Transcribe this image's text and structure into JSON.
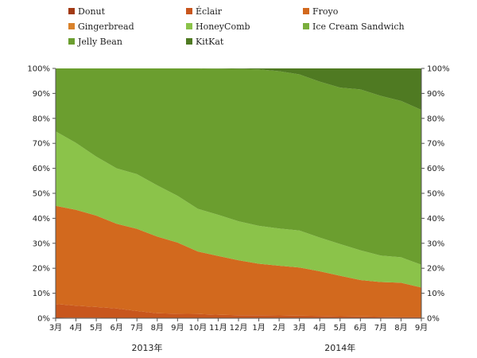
{
  "chart_data": {
    "type": "area",
    "stacked": true,
    "x": [
      "3月",
      "4月",
      "5月",
      "6月",
      "7月",
      "8月",
      "9月",
      "10月",
      "11月",
      "12月",
      "1月",
      "2月",
      "3月",
      "4月",
      "5月",
      "6月",
      "7月",
      "8月",
      "9月"
    ],
    "year_labels": [
      {
        "label": "2013年",
        "start_index": 0,
        "end_index": 9
      },
      {
        "label": "2014年",
        "start_index": 10,
        "end_index": 18
      }
    ],
    "ylim": [
      0,
      100
    ],
    "y_ticks": [
      "0%",
      "10%",
      "20%",
      "30%",
      "40%",
      "50%",
      "60%",
      "70%",
      "80%",
      "90%",
      "100%"
    ],
    "series": [
      {
        "name": "Donut",
        "color": "#a23a14",
        "values": [
          0.3,
          0.2,
          0.2,
          0.1,
          0.1,
          0.1,
          0.1,
          0.1,
          0.0,
          0.0,
          0.0,
          0.0,
          0.0,
          0.0,
          0.0,
          0.0,
          0.0,
          0.0,
          0.0
        ]
      },
      {
        "name": "Éclair",
        "color": "#c8561d",
        "values": [
          5.4,
          4.8,
          4.3,
          3.8,
          2.8,
          1.9,
          1.7,
          1.6,
          1.4,
          1.2,
          1.2,
          1.1,
          1.0,
          0.9,
          0.8,
          0.7,
          0.6,
          0.5,
          0.5
        ]
      },
      {
        "name": "Froyo",
        "color": "#d2691e",
        "values": [
          39.3,
          38.4,
          36.6,
          33.9,
          32.9,
          30.7,
          28.5,
          25.0,
          23.5,
          22.0,
          20.6,
          19.9,
          19.3,
          17.9,
          16.2,
          14.6,
          13.9,
          13.7,
          11.8
        ]
      },
      {
        "name": "Gingerbread",
        "color": "#d9822b",
        "values": [
          0.0,
          0.0,
          0.0,
          0.0,
          0.0,
          0.0,
          0.0,
          0.0,
          0.0,
          0.0,
          0.0,
          0.0,
          0.0,
          0.0,
          0.0,
          0.0,
          0.0,
          0.0,
          0.0
        ]
      },
      {
        "name": "HoneyComb",
        "color": "#8bc34a",
        "values": [
          29.8,
          26.8,
          23.6,
          22.2,
          21.9,
          20.5,
          18.7,
          17.1,
          16.5,
          15.6,
          15.2,
          14.9,
          14.8,
          13.5,
          12.7,
          11.9,
          10.6,
          10.2,
          9.1
        ]
      },
      {
        "name": "Ice Cream Sandwich",
        "color": "#7aae3c",
        "values": [
          0.0,
          0.0,
          0.0,
          0.0,
          0.0,
          0.0,
          0.0,
          0.0,
          0.0,
          0.0,
          0.0,
          0.0,
          0.0,
          0.0,
          0.0,
          0.0,
          0.0,
          0.0,
          0.0
        ]
      },
      {
        "name": "Jelly Bean",
        "color": "#6b9e2f",
        "values": [
          25.2,
          29.8,
          35.3,
          40.0,
          42.3,
          46.8,
          51.0,
          56.2,
          58.5,
          61.0,
          62.6,
          63.0,
          62.5,
          62.4,
          62.6,
          64.4,
          63.9,
          62.6,
          62.0
        ]
      },
      {
        "name": "KitKat",
        "color": "#4f7a22",
        "values": [
          0.0,
          0.0,
          0.0,
          0.0,
          0.0,
          0.0,
          0.0,
          0.0,
          0.1,
          0.2,
          0.4,
          1.1,
          2.4,
          5.3,
          7.7,
          8.4,
          11.0,
          13.0,
          16.6
        ]
      }
    ]
  }
}
